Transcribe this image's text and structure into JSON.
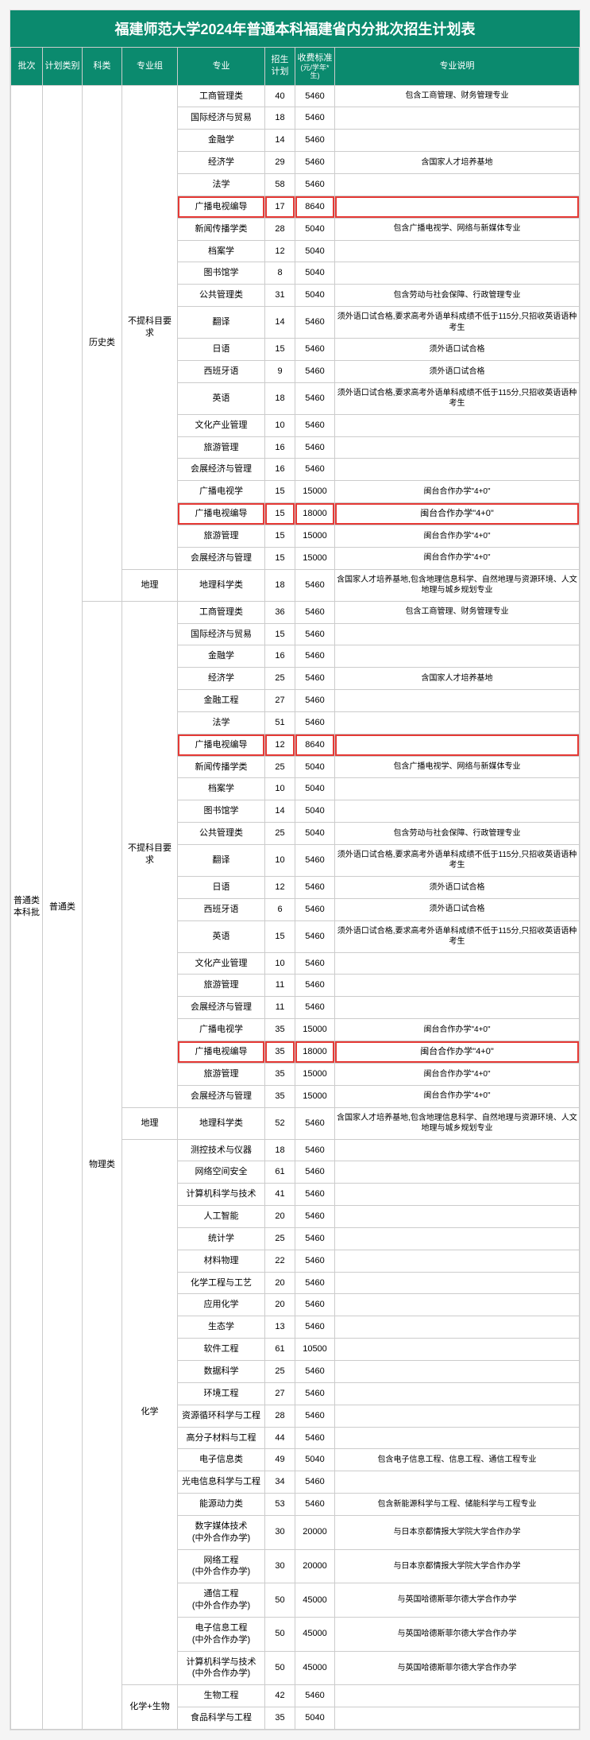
{
  "title": "福建师范大学2024年普通本科福建省内分批次招生计划表",
  "headers": {
    "batch": "批次",
    "planType": "计划类别",
    "category": "科类",
    "group": "专业组",
    "major": "专业",
    "count": "招生\n计划",
    "fee": "收费标准",
    "feeSub": "(元/学年*生)",
    "note": "专业说明"
  },
  "batch": "普通类\n本科批",
  "planType": "普通类",
  "categories": {
    "history": "历史类",
    "physics": "物理类"
  },
  "groups": {
    "none": "不提科目要求",
    "geo": "地理",
    "chem": "化学",
    "chembio": "化学+生物"
  },
  "rows": [
    {
      "cat": "history",
      "grp": "none",
      "major": "工商管理类",
      "count": 40,
      "fee": 5460,
      "note": "包含工商管理、财务管理专业",
      "hl": false
    },
    {
      "cat": "history",
      "grp": "none",
      "major": "国际经济与贸易",
      "count": 18,
      "fee": 5460,
      "note": "",
      "hl": false
    },
    {
      "cat": "history",
      "grp": "none",
      "major": "金融学",
      "count": 14,
      "fee": 5460,
      "note": "",
      "hl": false
    },
    {
      "cat": "history",
      "grp": "none",
      "major": "经济学",
      "count": 29,
      "fee": 5460,
      "note": "含国家人才培养基地",
      "hl": false
    },
    {
      "cat": "history",
      "grp": "none",
      "major": "法学",
      "count": 58,
      "fee": 5460,
      "note": "",
      "hl": false
    },
    {
      "cat": "history",
      "grp": "none",
      "major": "广播电视编导",
      "count": 17,
      "fee": 8640,
      "note": "",
      "hl": true
    },
    {
      "cat": "history",
      "grp": "none",
      "major": "新闻传播学类",
      "count": 28,
      "fee": 5040,
      "note": "包含广播电视学、网络与新媒体专业",
      "hl": false
    },
    {
      "cat": "history",
      "grp": "none",
      "major": "档案学",
      "count": 12,
      "fee": 5040,
      "note": "",
      "hl": false
    },
    {
      "cat": "history",
      "grp": "none",
      "major": "图书馆学",
      "count": 8,
      "fee": 5040,
      "note": "",
      "hl": false
    },
    {
      "cat": "history",
      "grp": "none",
      "major": "公共管理类",
      "count": 31,
      "fee": 5040,
      "note": "包含劳动与社会保障、行政管理专业",
      "hl": false
    },
    {
      "cat": "history",
      "grp": "none",
      "major": "翻译",
      "count": 14,
      "fee": 5460,
      "note": "须外语口试合格,要求高考外语单科成绩不低于115分,只招收英语语种考生",
      "hl": false
    },
    {
      "cat": "history",
      "grp": "none",
      "major": "日语",
      "count": 15,
      "fee": 5460,
      "note": "须外语口试合格",
      "hl": false
    },
    {
      "cat": "history",
      "grp": "none",
      "major": "西班牙语",
      "count": 9,
      "fee": 5460,
      "note": "须外语口试合格",
      "hl": false
    },
    {
      "cat": "history",
      "grp": "none",
      "major": "英语",
      "count": 18,
      "fee": 5460,
      "note": "须外语口试合格,要求高考外语单科成绩不低于115分,只招收英语语种考生",
      "hl": false
    },
    {
      "cat": "history",
      "grp": "none",
      "major": "文化产业管理",
      "count": 10,
      "fee": 5460,
      "note": "",
      "hl": false
    },
    {
      "cat": "history",
      "grp": "none",
      "major": "旅游管理",
      "count": 16,
      "fee": 5460,
      "note": "",
      "hl": false
    },
    {
      "cat": "history",
      "grp": "none",
      "major": "会展经济与管理",
      "count": 16,
      "fee": 5460,
      "note": "",
      "hl": false
    },
    {
      "cat": "history",
      "grp": "none",
      "major": "广播电视学",
      "count": 15,
      "fee": 15000,
      "note": "闽台合作办学\"4+0\"",
      "hl": false
    },
    {
      "cat": "history",
      "grp": "none",
      "major": "广播电视编导",
      "count": 15,
      "fee": 18000,
      "note": "闽台合作办学\"4+0\"",
      "hl": true
    },
    {
      "cat": "history",
      "grp": "none",
      "major": "旅游管理",
      "count": 15,
      "fee": 15000,
      "note": "闽台合作办学\"4+0\"",
      "hl": false
    },
    {
      "cat": "history",
      "grp": "none",
      "major": "会展经济与管理",
      "count": 15,
      "fee": 15000,
      "note": "闽台合作办学\"4+0\"",
      "hl": false
    },
    {
      "cat": "history",
      "grp": "geo",
      "major": "地理科学类",
      "count": 18,
      "fee": 5460,
      "note": "含国家人才培养基地,包含地理信息科学、自然地理与资源环境、人文地理与城乡规划专业",
      "hl": false
    },
    {
      "cat": "physics",
      "grp": "none",
      "major": "工商管理类",
      "count": 36,
      "fee": 5460,
      "note": "包含工商管理、财务管理专业",
      "hl": false
    },
    {
      "cat": "physics",
      "grp": "none",
      "major": "国际经济与贸易",
      "count": 15,
      "fee": 5460,
      "note": "",
      "hl": false
    },
    {
      "cat": "physics",
      "grp": "none",
      "major": "金融学",
      "count": 16,
      "fee": 5460,
      "note": "",
      "hl": false
    },
    {
      "cat": "physics",
      "grp": "none",
      "major": "经济学",
      "count": 25,
      "fee": 5460,
      "note": "含国家人才培养基地",
      "hl": false
    },
    {
      "cat": "physics",
      "grp": "none",
      "major": "金融工程",
      "count": 27,
      "fee": 5460,
      "note": "",
      "hl": false
    },
    {
      "cat": "physics",
      "grp": "none",
      "major": "法学",
      "count": 51,
      "fee": 5460,
      "note": "",
      "hl": false
    },
    {
      "cat": "physics",
      "grp": "none",
      "major": "广播电视编导",
      "count": 12,
      "fee": 8640,
      "note": "",
      "hl": true
    },
    {
      "cat": "physics",
      "grp": "none",
      "major": "新闻传播学类",
      "count": 25,
      "fee": 5040,
      "note": "包含广播电视学、网络与新媒体专业",
      "hl": false
    },
    {
      "cat": "physics",
      "grp": "none",
      "major": "档案学",
      "count": 10,
      "fee": 5040,
      "note": "",
      "hl": false
    },
    {
      "cat": "physics",
      "grp": "none",
      "major": "图书馆学",
      "count": 14,
      "fee": 5040,
      "note": "",
      "hl": false
    },
    {
      "cat": "physics",
      "grp": "none",
      "major": "公共管理类",
      "count": 25,
      "fee": 5040,
      "note": "包含劳动与社会保障、行政管理专业",
      "hl": false
    },
    {
      "cat": "physics",
      "grp": "none",
      "major": "翻译",
      "count": 10,
      "fee": 5460,
      "note": "须外语口试合格,要求高考外语单科成绩不低于115分,只招收英语语种考生",
      "hl": false
    },
    {
      "cat": "physics",
      "grp": "none",
      "major": "日语",
      "count": 12,
      "fee": 5460,
      "note": "须外语口试合格",
      "hl": false
    },
    {
      "cat": "physics",
      "grp": "none",
      "major": "西班牙语",
      "count": 6,
      "fee": 5460,
      "note": "须外语口试合格",
      "hl": false
    },
    {
      "cat": "physics",
      "grp": "none",
      "major": "英语",
      "count": 15,
      "fee": 5460,
      "note": "须外语口试合格,要求高考外语单科成绩不低于115分,只招收英语语种考生",
      "hl": false
    },
    {
      "cat": "physics",
      "grp": "none",
      "major": "文化产业管理",
      "count": 10,
      "fee": 5460,
      "note": "",
      "hl": false
    },
    {
      "cat": "physics",
      "grp": "none",
      "major": "旅游管理",
      "count": 11,
      "fee": 5460,
      "note": "",
      "hl": false
    },
    {
      "cat": "physics",
      "grp": "none",
      "major": "会展经济与管理",
      "count": 11,
      "fee": 5460,
      "note": "",
      "hl": false
    },
    {
      "cat": "physics",
      "grp": "none",
      "major": "广播电视学",
      "count": 35,
      "fee": 15000,
      "note": "闽台合作办学\"4+0\"",
      "hl": false
    },
    {
      "cat": "physics",
      "grp": "none",
      "major": "广播电视编导",
      "count": 35,
      "fee": 18000,
      "note": "闽台合作办学\"4+0\"",
      "hl": true
    },
    {
      "cat": "physics",
      "grp": "none",
      "major": "旅游管理",
      "count": 35,
      "fee": 15000,
      "note": "闽台合作办学\"4+0\"",
      "hl": false
    },
    {
      "cat": "physics",
      "grp": "none",
      "major": "会展经济与管理",
      "count": 35,
      "fee": 15000,
      "note": "闽台合作办学\"4+0\"",
      "hl": false
    },
    {
      "cat": "physics",
      "grp": "geo",
      "major": "地理科学类",
      "count": 52,
      "fee": 5460,
      "note": "含国家人才培养基地,包含地理信息科学、自然地理与资源环境、人文地理与城乡规划专业",
      "hl": false
    },
    {
      "cat": "physics",
      "grp": "chem",
      "major": "测控技术与仪器",
      "count": 18,
      "fee": 5460,
      "note": "",
      "hl": false
    },
    {
      "cat": "physics",
      "grp": "chem",
      "major": "网络空间安全",
      "count": 61,
      "fee": 5460,
      "note": "",
      "hl": false
    },
    {
      "cat": "physics",
      "grp": "chem",
      "major": "计算机科学与技术",
      "count": 41,
      "fee": 5460,
      "note": "",
      "hl": false
    },
    {
      "cat": "physics",
      "grp": "chem",
      "major": "人工智能",
      "count": 20,
      "fee": 5460,
      "note": "",
      "hl": false
    },
    {
      "cat": "physics",
      "grp": "chem",
      "major": "统计学",
      "count": 25,
      "fee": 5460,
      "note": "",
      "hl": false
    },
    {
      "cat": "physics",
      "grp": "chem",
      "major": "材料物理",
      "count": 22,
      "fee": 5460,
      "note": "",
      "hl": false
    },
    {
      "cat": "physics",
      "grp": "chem",
      "major": "化学工程与工艺",
      "count": 20,
      "fee": 5460,
      "note": "",
      "hl": false
    },
    {
      "cat": "physics",
      "grp": "chem",
      "major": "应用化学",
      "count": 20,
      "fee": 5460,
      "note": "",
      "hl": false
    },
    {
      "cat": "physics",
      "grp": "chem",
      "major": "生态学",
      "count": 13,
      "fee": 5460,
      "note": "",
      "hl": false
    },
    {
      "cat": "physics",
      "grp": "chem",
      "major": "软件工程",
      "count": 61,
      "fee": 10500,
      "note": "",
      "hl": false
    },
    {
      "cat": "physics",
      "grp": "chem",
      "major": "数据科学",
      "count": 25,
      "fee": 5460,
      "note": "",
      "hl": false
    },
    {
      "cat": "physics",
      "grp": "chem",
      "major": "环境工程",
      "count": 27,
      "fee": 5460,
      "note": "",
      "hl": false
    },
    {
      "cat": "physics",
      "grp": "chem",
      "major": "资源循环科学与工程",
      "count": 28,
      "fee": 5460,
      "note": "",
      "hl": false
    },
    {
      "cat": "physics",
      "grp": "chem",
      "major": "高分子材料与工程",
      "count": 44,
      "fee": 5460,
      "note": "",
      "hl": false
    },
    {
      "cat": "physics",
      "grp": "chem",
      "major": "电子信息类",
      "count": 49,
      "fee": 5040,
      "note": "包含电子信息工程、信息工程、通信工程专业",
      "hl": false
    },
    {
      "cat": "physics",
      "grp": "chem",
      "major": "光电信息科学与工程",
      "count": 34,
      "fee": 5460,
      "note": "",
      "hl": false
    },
    {
      "cat": "physics",
      "grp": "chem",
      "major": "能源动力类",
      "count": 53,
      "fee": 5460,
      "note": "包含新能源科学与工程、储能科学与工程专业",
      "hl": false
    },
    {
      "cat": "physics",
      "grp": "chem",
      "major": "数字媒体技术\n(中外合作办学)",
      "count": 30,
      "fee": 20000,
      "note": "与日本京都情报大学院大学合作办学",
      "hl": false
    },
    {
      "cat": "physics",
      "grp": "chem",
      "major": "网络工程\n(中外合作办学)",
      "count": 30,
      "fee": 20000,
      "note": "与日本京都情报大学院大学合作办学",
      "hl": false
    },
    {
      "cat": "physics",
      "grp": "chem",
      "major": "通信工程\n(中外合作办学)",
      "count": 50,
      "fee": 45000,
      "note": "与英国哈德斯菲尔德大学合作办学",
      "hl": false
    },
    {
      "cat": "physics",
      "grp": "chem",
      "major": "电子信息工程\n(中外合作办学)",
      "count": 50,
      "fee": 45000,
      "note": "与英国哈德斯菲尔德大学合作办学",
      "hl": false
    },
    {
      "cat": "physics",
      "grp": "chem",
      "major": "计算机科学与技术\n(中外合作办学)",
      "count": 50,
      "fee": 45000,
      "note": "与英国哈德斯菲尔德大学合作办学",
      "hl": false
    },
    {
      "cat": "physics",
      "grp": "chembio",
      "major": "生物工程",
      "count": 42,
      "fee": 5460,
      "note": "",
      "hl": false
    },
    {
      "cat": "physics",
      "grp": "chembio",
      "major": "食品科学与工程",
      "count": 35,
      "fee": 5040,
      "note": "",
      "hl": false
    }
  ],
  "colors": {
    "headerBg": "#0b8a6e",
    "border": "#cccccc",
    "highlight": "#e53935"
  }
}
